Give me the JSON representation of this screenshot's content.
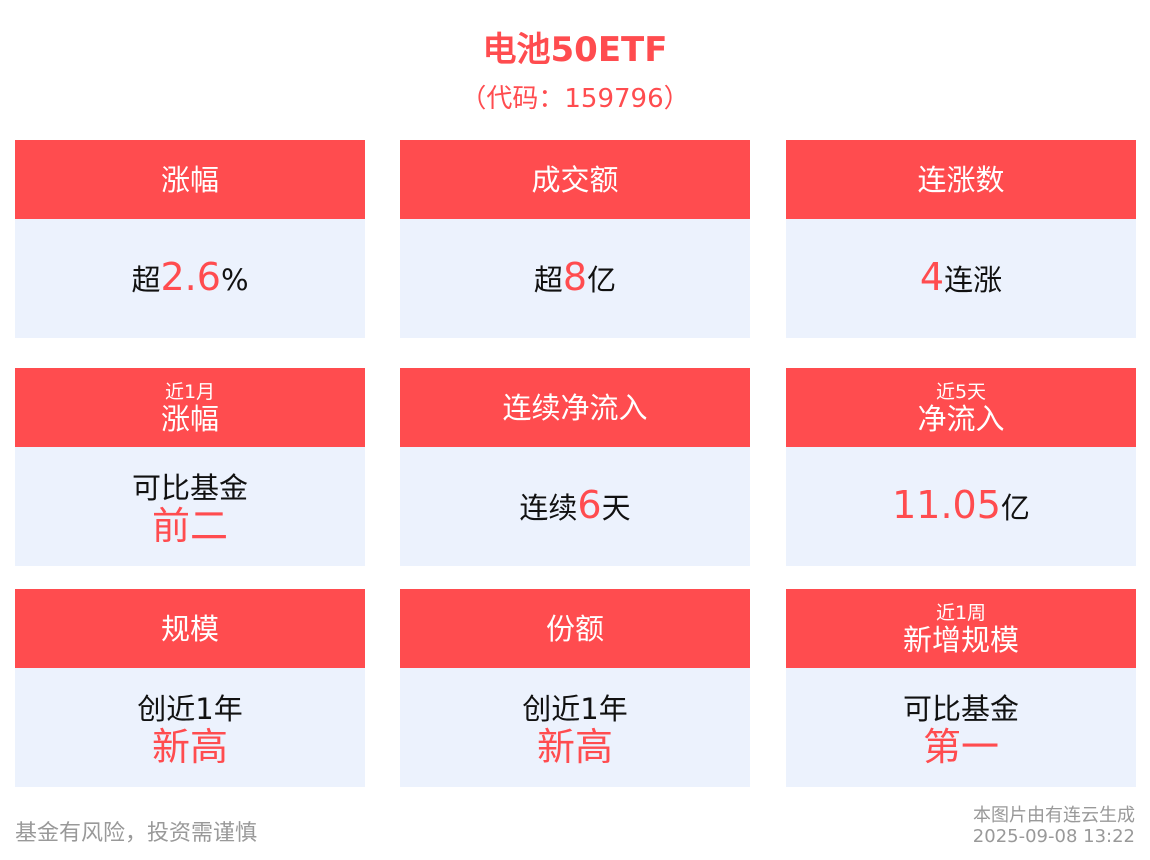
{
  "title": "电池50ETF",
  "subtitle": "（代码：159796）",
  "cards": [
    {
      "small": "",
      "label": "涨幅",
      "pre": "超",
      "val": "2.6",
      "post": "%",
      "line2": ""
    },
    {
      "small": "",
      "label": "成交额",
      "pre": "超",
      "val": "8",
      "post": "亿",
      "line2": ""
    },
    {
      "small": "",
      "label": "连涨数",
      "pre": "",
      "val": "4",
      "post": "连涨",
      "line2": ""
    },
    {
      "small": "近1月",
      "label": "涨幅",
      "pre": "可比基金",
      "val": "",
      "post": "",
      "line2": "前二"
    },
    {
      "small": "",
      "label": "连续净流入",
      "pre": "连续",
      "val": "6",
      "post": "天",
      "line2": ""
    },
    {
      "small": "近5天",
      "label": "净流入",
      "pre": "",
      "val": "11.05",
      "post": "亿",
      "line2": ""
    },
    {
      "small": "",
      "label": "规模",
      "pre": "创近1年",
      "val": "",
      "post": "",
      "line2": "新高"
    },
    {
      "small": "",
      "label": "份额",
      "pre": "创近1年",
      "val": "",
      "post": "",
      "line2": "新高"
    },
    {
      "small": "近1周",
      "label": "新增规模",
      "pre": "可比基金",
      "val": "",
      "post": "",
      "line2": "第一"
    }
  ],
  "footer": {
    "disclaimer": "基金有风险，投资需谨慎",
    "source": "本图片由有连云生成",
    "timestamp": "2025-09-08 13:22"
  },
  "colors": {
    "accent": "#ff4c4f",
    "card_bg": "#ecf2fd"
  }
}
